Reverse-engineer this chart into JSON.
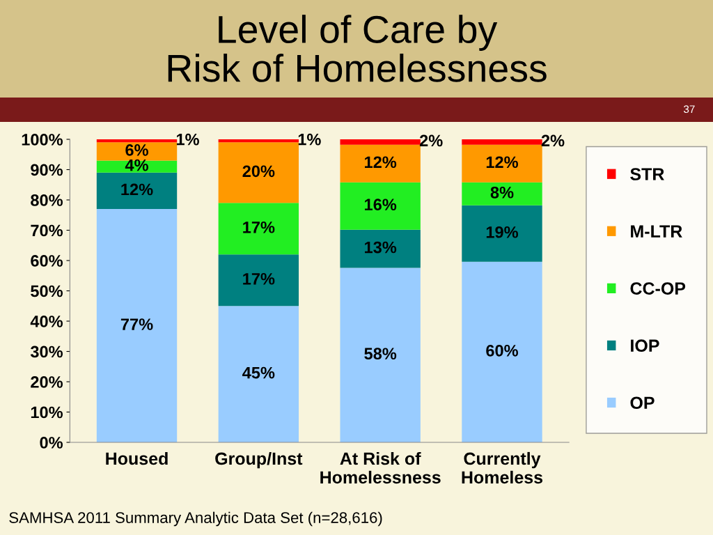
{
  "chart_data": {
    "type": "bar",
    "stacked": true,
    "title": "Level of Care by\nRisk of Homelessness",
    "categories": [
      "Housed",
      "Group/Inst",
      "At Risk of\nHomelessness",
      "Currently\nHomeless"
    ],
    "series": [
      {
        "name": "OP",
        "color": "#99ccff",
        "values": [
          77,
          45,
          57.6,
          59.6
        ],
        "value_labels": [
          "77%",
          "45%",
          "58%",
          "60%"
        ]
      },
      {
        "name": "IOP",
        "color": "#008080",
        "values": [
          12,
          17,
          12.6,
          18.6
        ],
        "value_labels": [
          "12%",
          "17%",
          "13%",
          "19%"
        ]
      },
      {
        "name": "CC-OP",
        "color": "#22ee22",
        "values": [
          4,
          17,
          15.6,
          7.6
        ],
        "value_labels": [
          "4%",
          "17%",
          "16%",
          "8%"
        ]
      },
      {
        "name": "M-LTR",
        "color": "#ff9900",
        "values": [
          6,
          20,
          12.4,
          12.4
        ],
        "value_labels": [
          "6%",
          "20%",
          "12%",
          "12%"
        ]
      },
      {
        "name": "STR",
        "color": "#ff0000",
        "values": [
          1,
          1,
          1.8,
          1.8
        ],
        "value_labels": [
          "1%",
          "1%",
          "2%",
          "2%"
        ]
      }
    ],
    "ylim": [
      0,
      100
    ],
    "yticks": [
      {
        "value": 0,
        "label": "0%"
      },
      {
        "value": 10,
        "label": "10%"
      },
      {
        "value": 20,
        "label": "20%"
      },
      {
        "value": 30,
        "label": "30%"
      },
      {
        "value": 40,
        "label": "40%"
      },
      {
        "value": 50,
        "label": "50%"
      },
      {
        "value": 60,
        "label": "60%"
      },
      {
        "value": 70,
        "label": "70%"
      },
      {
        "value": 80,
        "label": "80%"
      },
      {
        "value": 90,
        "label": "90%"
      },
      {
        "value": 100,
        "label": "100%"
      }
    ],
    "legend": "right",
    "grid": false,
    "annotations": [
      "37",
      "SAMHSA 2011 Summary Analytic Data Set (n=28,616)"
    ]
  }
}
